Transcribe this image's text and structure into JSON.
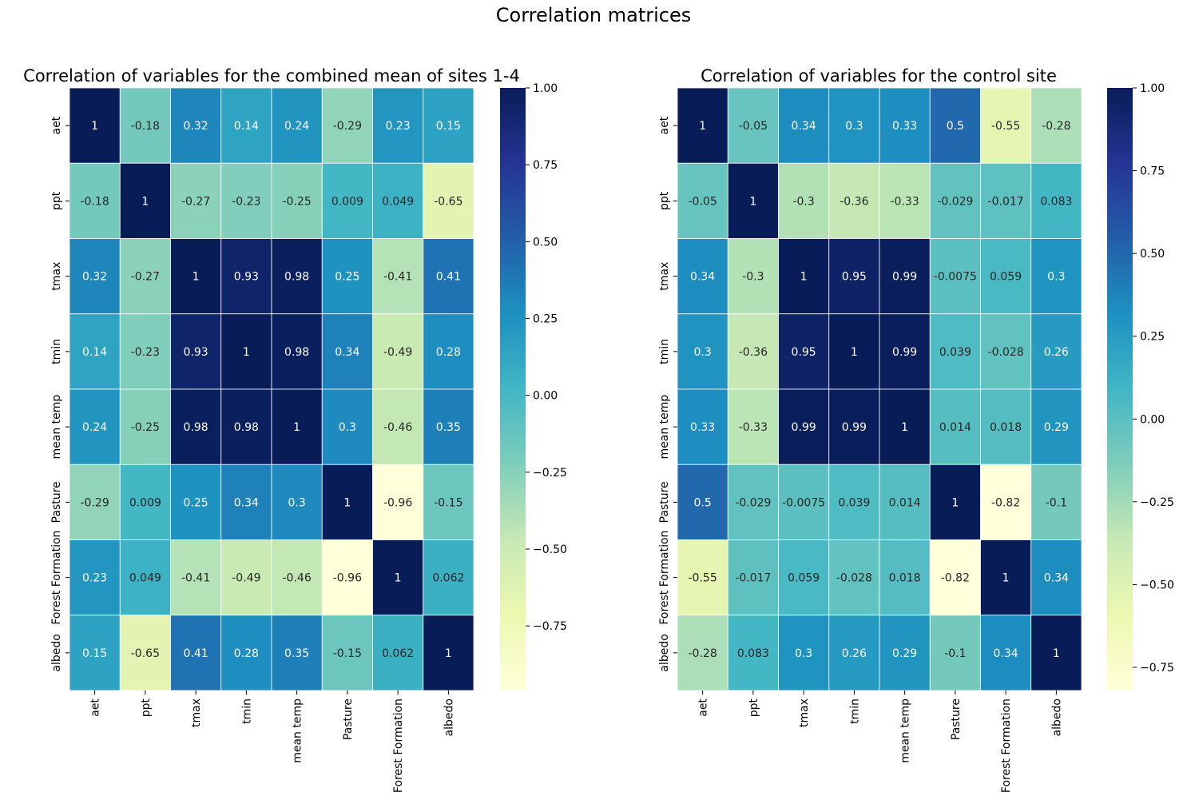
{
  "figure": {
    "suptitle": "Correlation matrices"
  },
  "chart_data": [
    {
      "type": "heatmap",
      "title": "Correlation of variables for the combined mean of sites 1-4",
      "variables": [
        "aet",
        "ppt",
        "tmax",
        "tmin",
        "mean temp",
        "Pasture",
        "Forest Formation",
        "albedo"
      ],
      "values": [
        [
          1,
          -0.18,
          0.32,
          0.14,
          0.24,
          -0.29,
          0.23,
          0.15
        ],
        [
          -0.18,
          1,
          -0.27,
          -0.23,
          -0.25,
          0.009,
          0.049,
          -0.65
        ],
        [
          0.32,
          -0.27,
          1,
          0.93,
          0.98,
          0.25,
          -0.41,
          0.41
        ],
        [
          0.14,
          -0.23,
          0.93,
          1,
          0.98,
          0.34,
          -0.49,
          0.28
        ],
        [
          0.24,
          -0.25,
          0.98,
          0.98,
          1,
          0.3,
          -0.46,
          0.35
        ],
        [
          -0.29,
          0.009,
          0.25,
          0.34,
          0.3,
          1,
          -0.96,
          -0.15
        ],
        [
          0.23,
          0.049,
          -0.41,
          -0.49,
          -0.46,
          -0.96,
          1,
          0.062
        ],
        [
          0.15,
          -0.65,
          0.41,
          0.28,
          0.35,
          -0.15,
          0.062,
          1
        ]
      ],
      "colormap": "YlGnBu",
      "vmin": -0.96,
      "vmax": 1,
      "colorbar_ticks": [
        "1.00",
        "0.75",
        "0.50",
        "0.25",
        "0.00",
        "−0.25",
        "−0.50",
        "−0.75"
      ]
    },
    {
      "type": "heatmap",
      "title": "Correlation of variables for the control site",
      "variables": [
        "aet",
        "ppt",
        "tmax",
        "tmin",
        "mean temp",
        "Pasture",
        "Forest Formation",
        "albedo"
      ],
      "values": [
        [
          1,
          -0.05,
          0.34,
          0.3,
          0.33,
          0.5,
          -0.55,
          -0.28
        ],
        [
          -0.05,
          1,
          -0.3,
          -0.36,
          -0.33,
          -0.029,
          -0.017,
          0.083
        ],
        [
          0.34,
          -0.3,
          1,
          0.95,
          0.99,
          -0.0075,
          0.059,
          0.3
        ],
        [
          0.3,
          -0.36,
          0.95,
          1,
          0.99,
          0.039,
          -0.028,
          0.26
        ],
        [
          0.33,
          -0.33,
          0.99,
          0.99,
          1,
          0.014,
          0.018,
          0.29
        ],
        [
          0.5,
          -0.029,
          -0.0075,
          0.039,
          0.014,
          1,
          -0.82,
          -0.1
        ],
        [
          -0.55,
          -0.017,
          0.059,
          -0.028,
          0.018,
          -0.82,
          1,
          0.34
        ],
        [
          -0.28,
          0.083,
          0.3,
          0.26,
          0.29,
          -0.1,
          0.34,
          1
        ]
      ],
      "colormap": "YlGnBu",
      "vmin": -0.82,
      "vmax": 1,
      "colorbar_ticks": [
        "1.00",
        "0.75",
        "0.50",
        "0.25",
        "0.00",
        "−0.25",
        "−0.50",
        "−0.75"
      ]
    }
  ]
}
